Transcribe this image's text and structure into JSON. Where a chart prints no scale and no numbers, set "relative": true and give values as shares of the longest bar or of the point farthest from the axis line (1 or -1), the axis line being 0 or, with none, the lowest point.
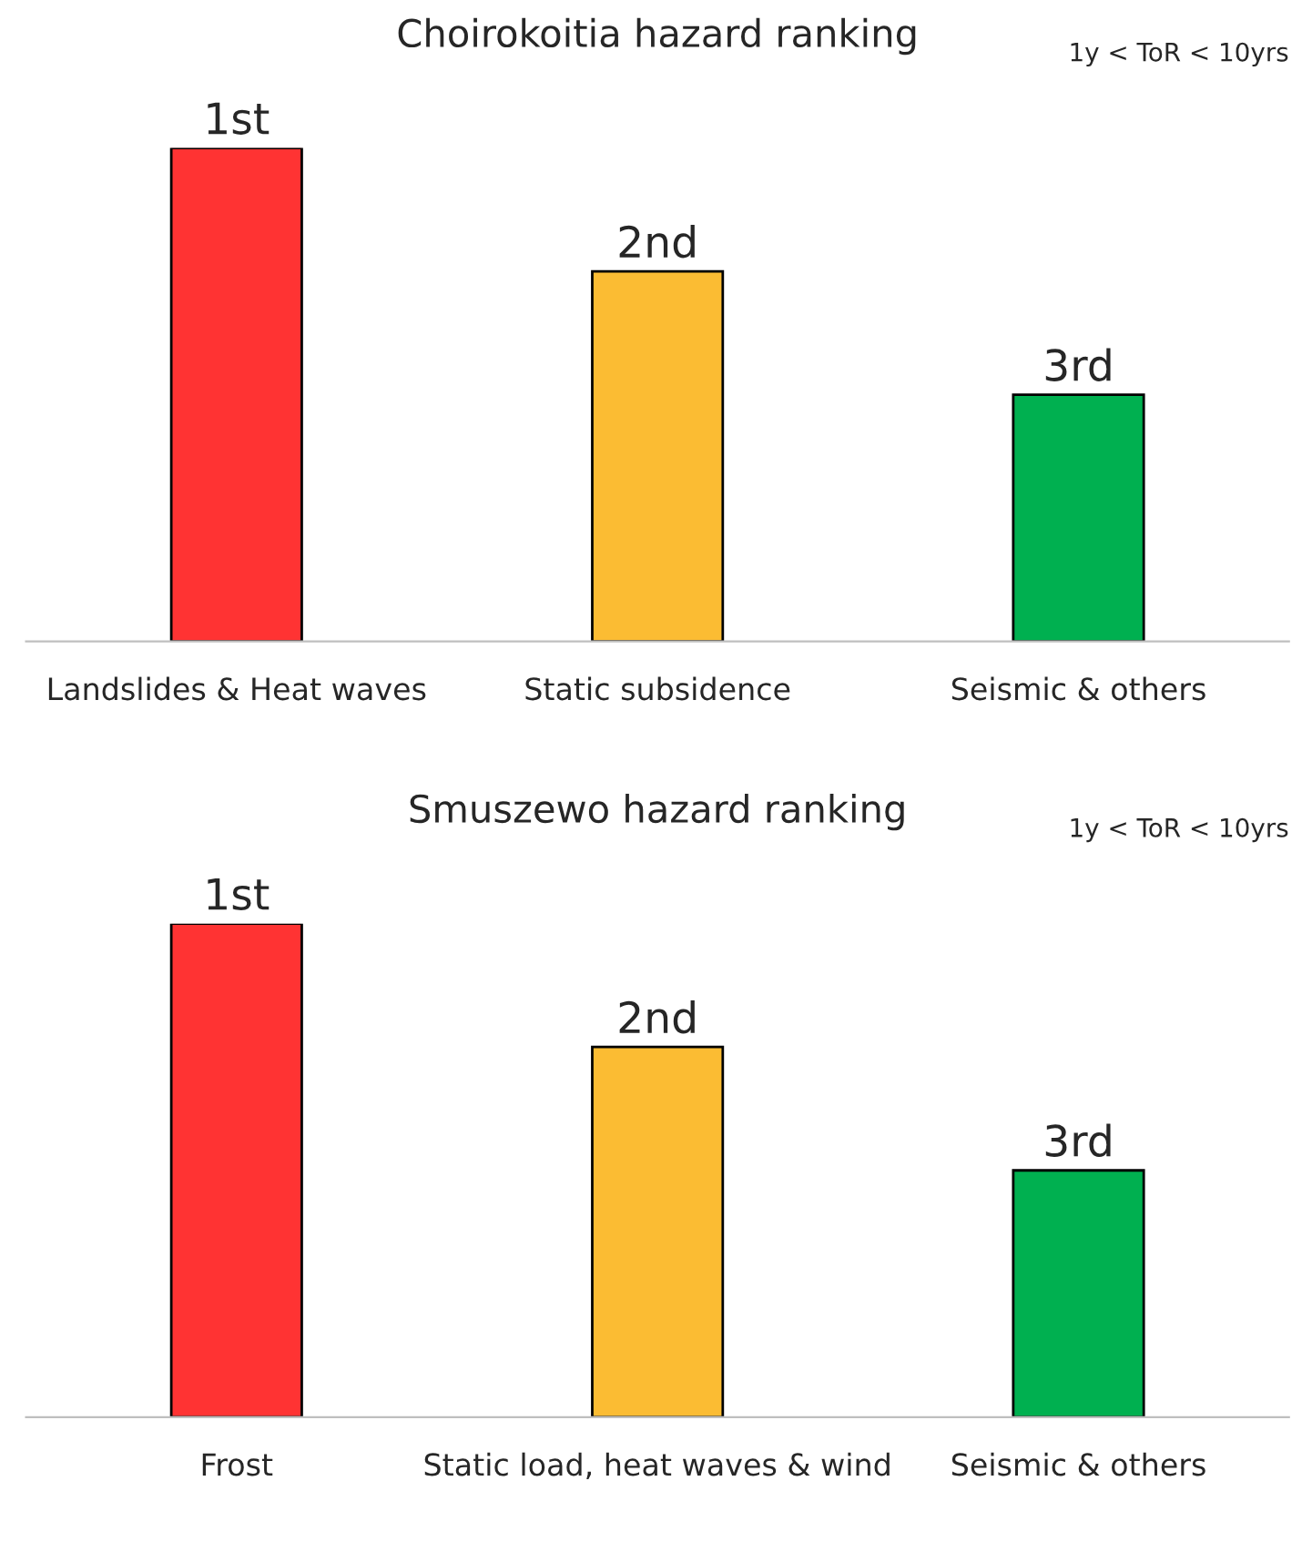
{
  "chart_data": [
    {
      "type": "bar",
      "title": "Choirokoitia hazard ranking",
      "relative": true,
      "categories": [
        "Landslides & Heat waves",
        "Static subsidence",
        "Seismic & others"
      ],
      "values": [
        1,
        0.75,
        0.5
      ],
      "colors": [
        "#ff3333",
        "#fbbc33",
        "#00b050"
      ],
      "legend": false,
      "grid": false,
      "annotations": [
        "1y < ToR < 10yrs",
        {
          "text": "1st",
          "x": "Landslides & Heat waves",
          "y": 1
        },
        {
          "text": "2nd",
          "x": "Static subsidence",
          "y": 0.75
        },
        {
          "text": "3rd",
          "x": "Seismic & others",
          "y": 0.5
        }
      ]
    },
    {
      "type": "bar",
      "title": "Smuszewo hazard ranking",
      "relative": true,
      "categories": [
        "Frost",
        "Static load, heat waves & wind",
        "Seismic & others"
      ],
      "values": [
        1,
        0.75,
        0.5
      ],
      "colors": [
        "#ff3333",
        "#fbbc33",
        "#00b050"
      ],
      "legend": false,
      "grid": false,
      "annotations": [
        "1y < ToR < 10yrs",
        {
          "text": "1st",
          "x": "Frost",
          "y": 1
        },
        {
          "text": "2nd",
          "x": "Static load, heat waves & wind",
          "y": 0.75
        },
        {
          "text": "3rd",
          "x": "Seismic & others",
          "y": 0.5
        }
      ]
    }
  ]
}
